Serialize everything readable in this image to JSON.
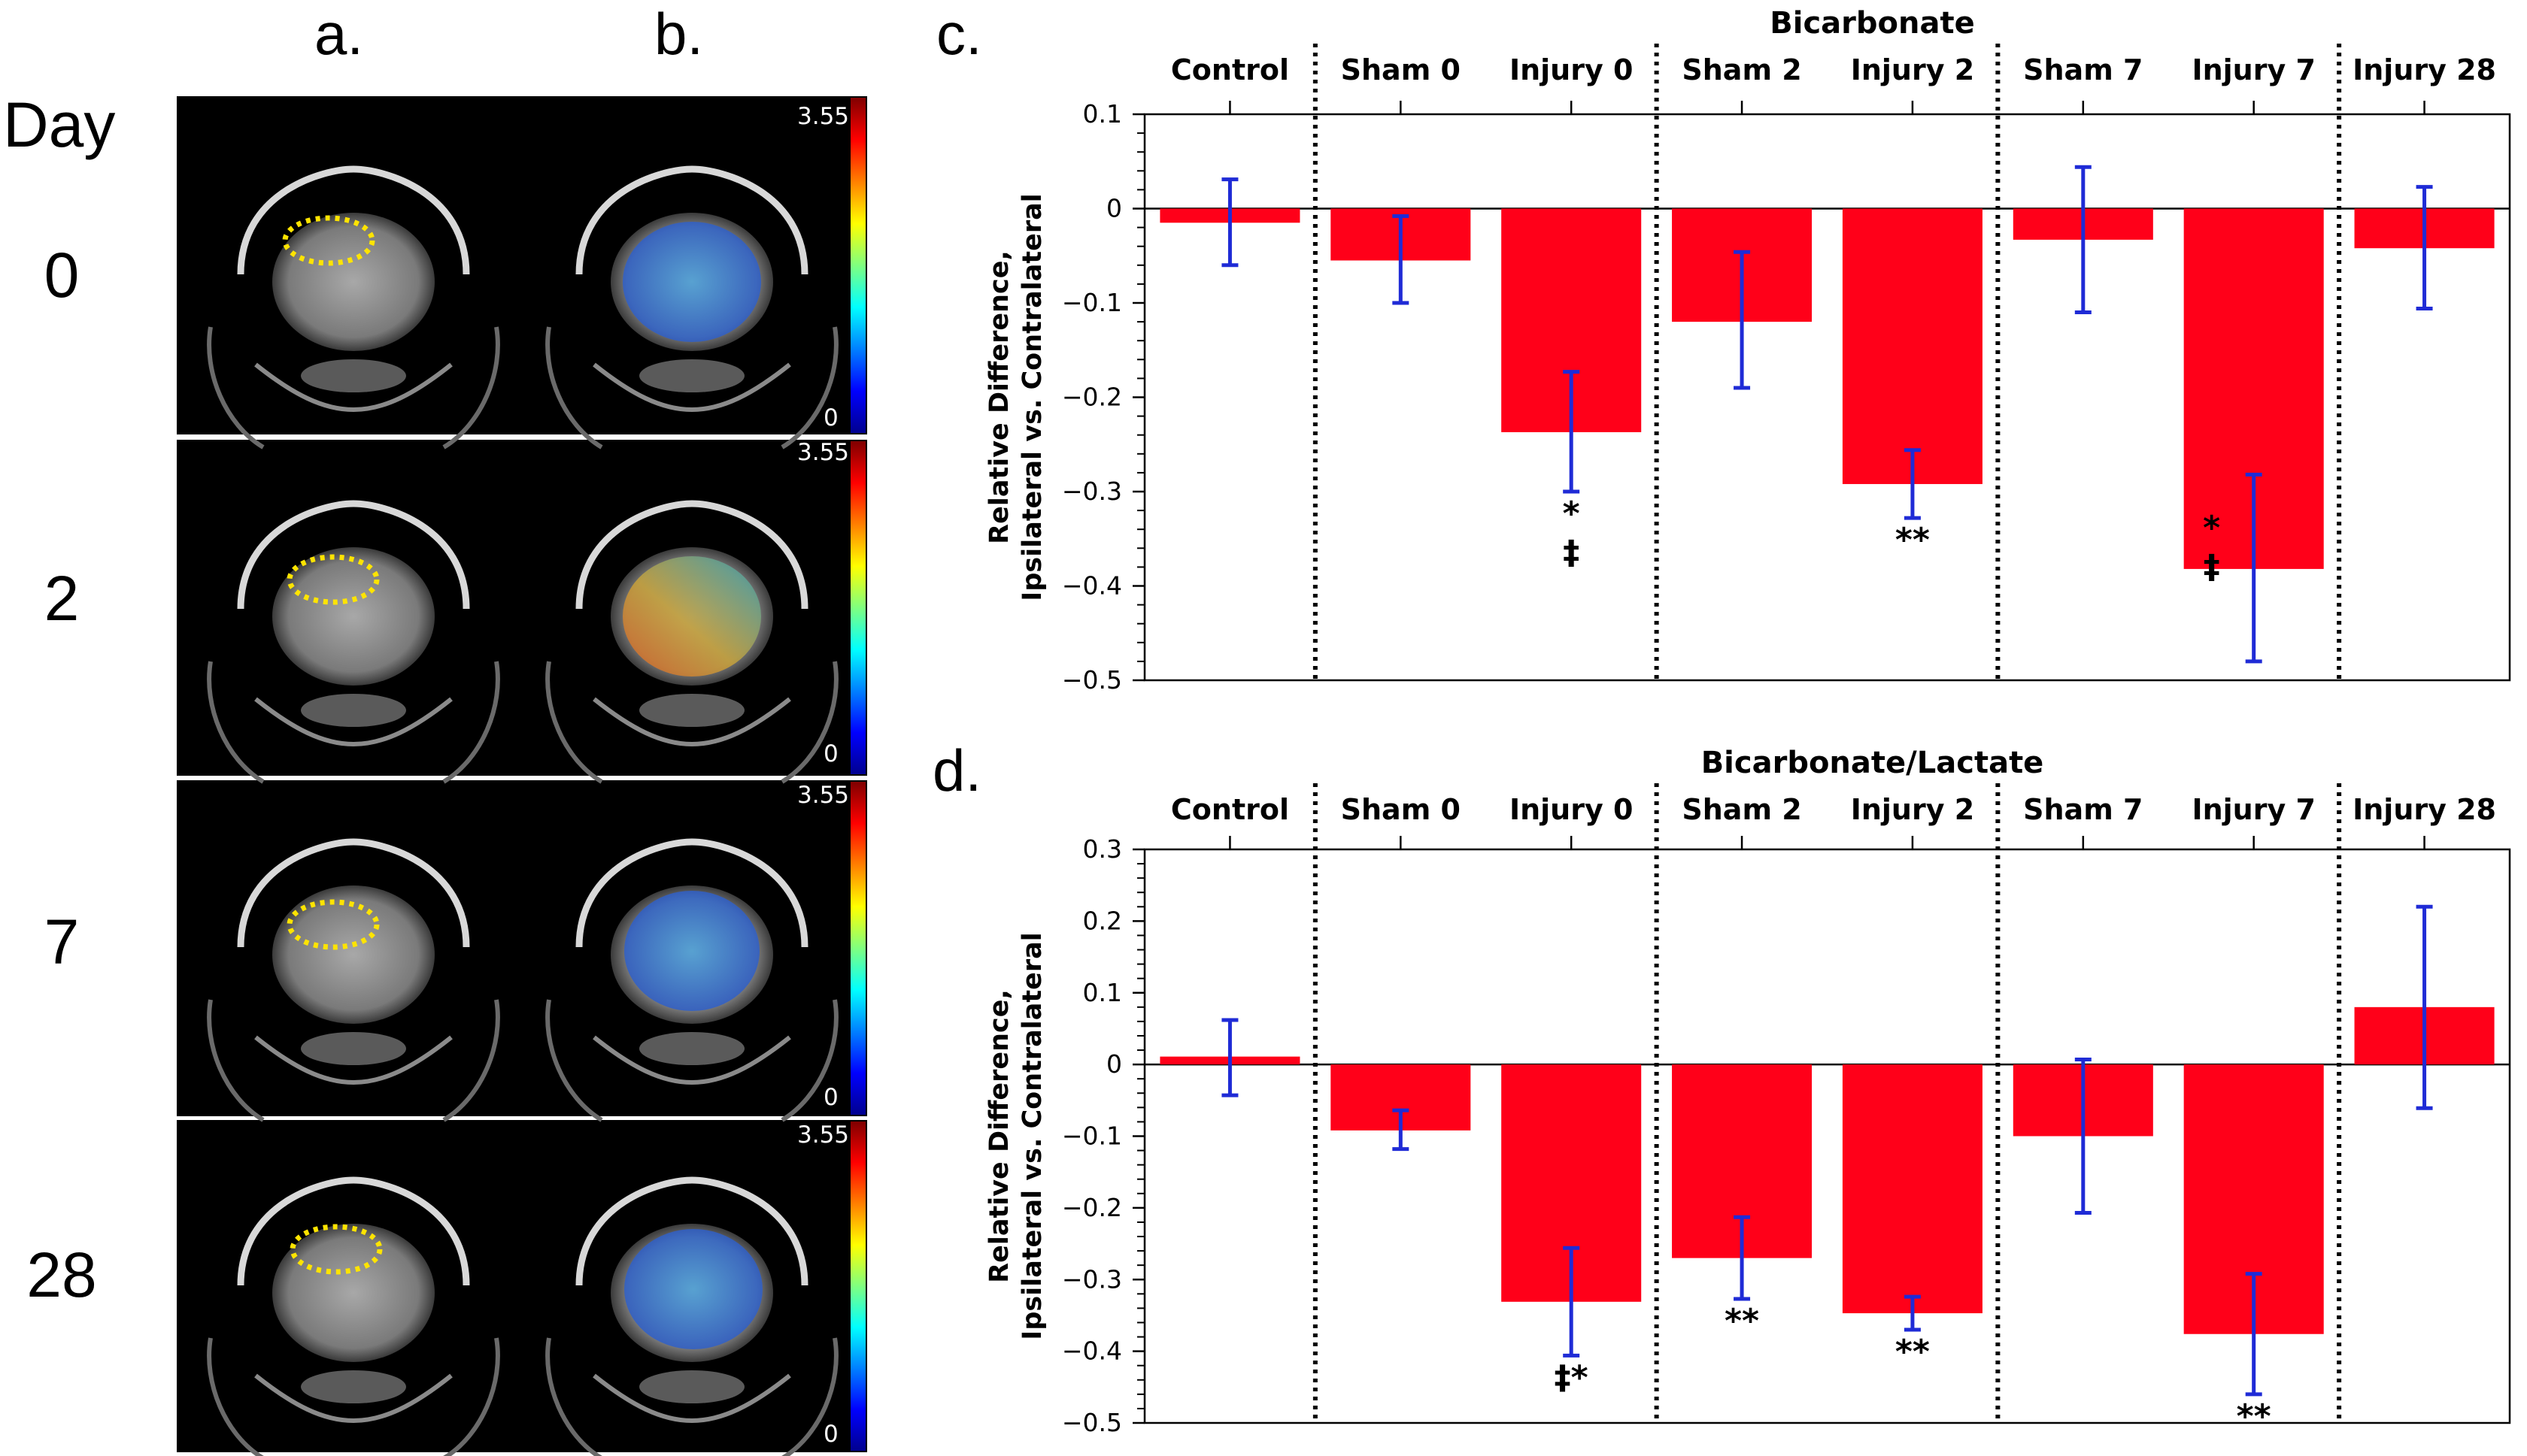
{
  "left_figure": {
    "col_labels": [
      "a.",
      "b."
    ],
    "row_title": "Day",
    "days": [
      "0",
      "2",
      "7",
      "28"
    ],
    "colorbar": {
      "max": "3.55",
      "min": "0"
    }
  },
  "colors": {
    "bar": "#ff0019",
    "error": "#1f2bd6",
    "background": "#ffffff",
    "divider": "#000000"
  },
  "chart_data": [
    {
      "panel": "c.",
      "type": "bar",
      "title": "Bicarbonate",
      "ylabel_line1": "Relative Difference,",
      "ylabel_line2": "Ipsilateral vs. Contralateral",
      "xlabel": "",
      "categories": [
        "Control",
        "Sham 0",
        "Injury 0",
        "Sham 2",
        "Injury 2",
        "Sham 7",
        "Injury 7",
        "Injury 28"
      ],
      "values": [
        -0.015,
        -0.055,
        -0.237,
        -0.12,
        -0.292,
        -0.033,
        -0.382,
        -0.042
      ],
      "err_low": [
        -0.06,
        -0.1,
        -0.3,
        -0.19,
        -0.328,
        -0.11,
        -0.48,
        -0.106
      ],
      "err_high": [
        0.031,
        -0.008,
        -0.173,
        -0.046,
        -0.256,
        0.044,
        -0.282,
        0.023
      ],
      "annotations": [
        {
          "category": "Injury 0",
          "lines": [
            "*",
            "‡"
          ]
        },
        {
          "category": "Injury 2",
          "lines": [
            "**"
          ]
        },
        {
          "category": "Injury 7",
          "lines": [
            "*",
            "‡"
          ]
        }
      ],
      "ylim": [
        -0.5,
        0.1
      ],
      "yticks": [
        0.1,
        0,
        -0.1,
        -0.2,
        -0.3,
        -0.4,
        -0.5
      ],
      "ytick_labels": [
        "0.1",
        "0",
        "−0.1",
        "−0.2",
        "−0.3",
        "−0.4",
        "−0.5"
      ],
      "dividers_after": [
        "Control",
        "Injury 0",
        "Injury 2",
        "Injury 7"
      ],
      "grid": false
    },
    {
      "panel": "d.",
      "type": "bar",
      "title": "Bicarbonate/Lactate",
      "ylabel_line1": "Relative Difference,",
      "ylabel_line2": "Ipsilateral vs. Contralateral",
      "xlabel": "",
      "categories": [
        "Control",
        "Sham 0",
        "Injury 0",
        "Sham 2",
        "Injury 2",
        "Sham 7",
        "Injury 7",
        "Injury 28"
      ],
      "values": [
        0.011,
        -0.092,
        -0.331,
        -0.27,
        -0.347,
        -0.1,
        -0.376,
        0.08
      ],
      "err_low": [
        -0.043,
        -0.118,
        -0.406,
        -0.327,
        -0.37,
        -0.207,
        -0.46,
        -0.061
      ],
      "err_high": [
        0.062,
        -0.064,
        -0.256,
        -0.213,
        -0.324,
        0.007,
        -0.292,
        0.22
      ],
      "annotations": [
        {
          "category": "Injury 0",
          "lines": [
            "‡*"
          ]
        },
        {
          "category": "Sham 2",
          "lines": [
            "**"
          ]
        },
        {
          "category": "Injury 2",
          "lines": [
            "**"
          ]
        },
        {
          "category": "Injury 7",
          "lines": [
            "**"
          ]
        }
      ],
      "ylim": [
        -0.5,
        0.3
      ],
      "yticks": [
        0.3,
        0.2,
        0.1,
        0,
        -0.1,
        -0.2,
        -0.3,
        -0.4,
        -0.5
      ],
      "ytick_labels": [
        "0.3",
        "0.2",
        "0.1",
        "0",
        "−0.1",
        "−0.2",
        "−0.3",
        "−0.4",
        "−0.5"
      ],
      "dividers_after": [
        "Control",
        "Injury 0",
        "Injury 2",
        "Injury 7"
      ],
      "grid": false
    }
  ]
}
